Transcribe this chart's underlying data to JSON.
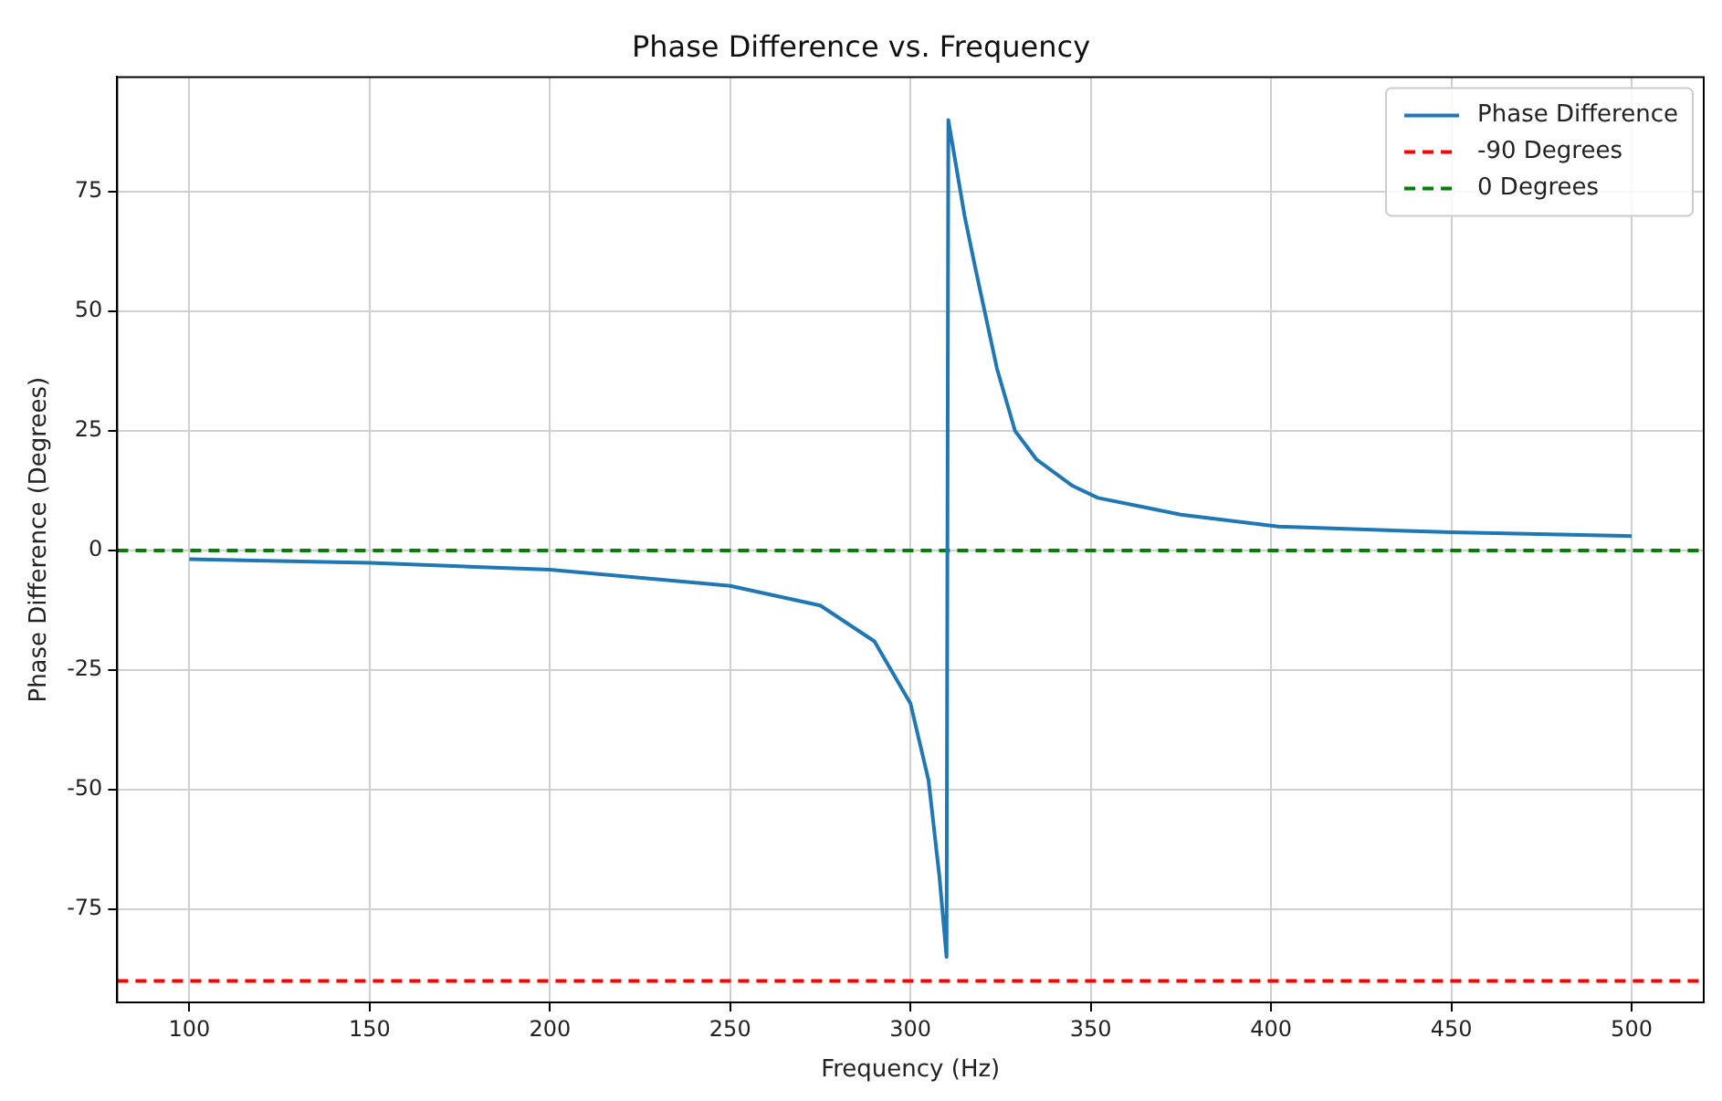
{
  "chart_data": {
    "type": "line",
    "title": "Phase Difference vs. Frequency",
    "xlabel": "Frequency (Hz)",
    "ylabel": "Phase Difference (Degrees)",
    "x": [
      100,
      150,
      200,
      250,
      275,
      290,
      300,
      305,
      308,
      310,
      310.5,
      315,
      318,
      324,
      329,
      335,
      345,
      352,
      375,
      402,
      450,
      500
    ],
    "series": [
      {
        "name": "Phase Difference",
        "color": "#1f77b4",
        "values": [
          -1.8,
          -2.6,
          -4,
          -7.4,
          -11.5,
          -19,
          -32,
          -48,
          -68,
          -85,
          90,
          70,
          59,
          38,
          25,
          19,
          13.5,
          11,
          7.5,
          5,
          3.8,
          3
        ]
      }
    ],
    "ref_lines": [
      {
        "axis": "y",
        "value": -90,
        "label": "-90 Degrees",
        "color": "#ff0000",
        "line_style": "dashed"
      },
      {
        "axis": "y",
        "value": 0,
        "label": "0 Degrees",
        "color": "#008000",
        "line_style": "dashed"
      }
    ],
    "xlim": [
      80,
      520
    ],
    "ylim": [
      -94.5,
      99
    ],
    "xticks": [
      100,
      150,
      200,
      250,
      300,
      350,
      400,
      450,
      500
    ],
    "yticks": [
      -75,
      -50,
      -25,
      0,
      25,
      50,
      75
    ],
    "grid": true,
    "legend": "top right",
    "marker": "none",
    "line_style": "solid"
  }
}
